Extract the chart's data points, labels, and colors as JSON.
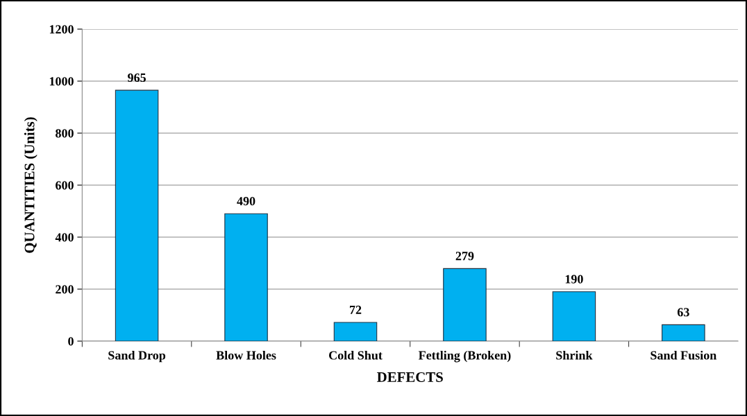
{
  "chart_data": {
    "type": "bar",
    "xlabel": "DEFECTS",
    "ylabel": "QUANTITIES (Units)",
    "categories": [
      "Sand Drop",
      "Blow Holes",
      "Cold Shut",
      "Fettling (Broken)",
      "Shrink",
      "Sand Fusion"
    ],
    "values": [
      965,
      490,
      72,
      279,
      190,
      63
    ],
    "color": "#00b0f0",
    "ylim": [
      0,
      1200
    ],
    "yticks": [
      0,
      200,
      400,
      600,
      800,
      1000,
      1200
    ],
    "grid": "y",
    "data_labels": true,
    "legend": false
  }
}
